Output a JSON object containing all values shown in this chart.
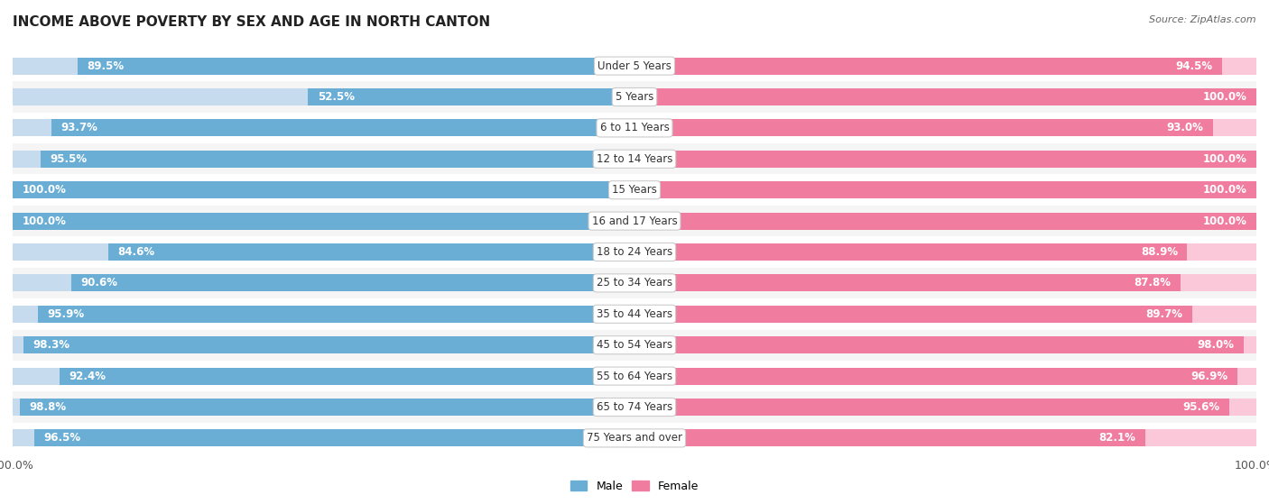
{
  "title": "INCOME ABOVE POVERTY BY SEX AND AGE IN NORTH CANTON",
  "source": "Source: ZipAtlas.com",
  "categories": [
    "Under 5 Years",
    "5 Years",
    "6 to 11 Years",
    "12 to 14 Years",
    "15 Years",
    "16 and 17 Years",
    "18 to 24 Years",
    "25 to 34 Years",
    "35 to 44 Years",
    "45 to 54 Years",
    "55 to 64 Years",
    "65 to 74 Years",
    "75 Years and over"
  ],
  "male_values": [
    89.5,
    52.5,
    93.7,
    95.5,
    100.0,
    100.0,
    84.6,
    90.6,
    95.9,
    98.3,
    92.4,
    98.8,
    96.5
  ],
  "female_values": [
    94.5,
    100.0,
    93.0,
    100.0,
    100.0,
    100.0,
    88.9,
    87.8,
    89.7,
    98.0,
    96.9,
    95.6,
    82.1
  ],
  "male_color": "#6aaed6",
  "female_color": "#f07ca0",
  "male_light_color": "#c6dcee",
  "female_light_color": "#fac8d8",
  "row_bg_odd": "#f5f5f5",
  "row_bg_even": "#ffffff",
  "background_color": "#ffffff",
  "title_fontsize": 11,
  "label_fontsize": 8.5,
  "value_fontsize": 8.5,
  "tick_fontsize": 9,
  "legend_fontsize": 9
}
